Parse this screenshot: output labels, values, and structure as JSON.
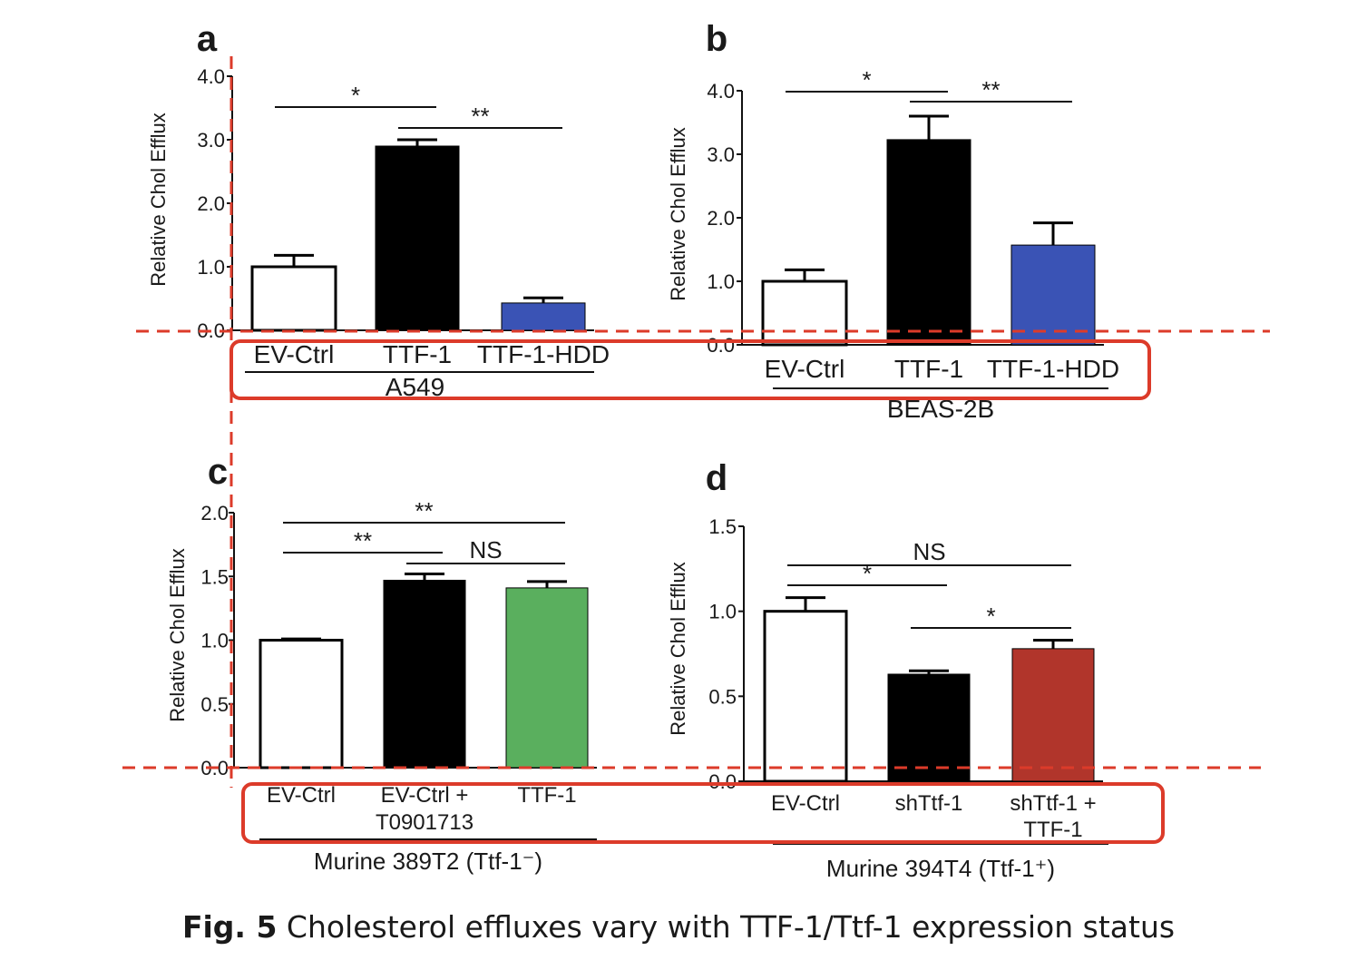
{
  "caption": {
    "label": "Fig. 5",
    "text": "Cholesterol effluxes vary with TTF-1/Ttf-1 expression status"
  },
  "colors": {
    "ev_ctrl": "#ffffff",
    "black": "#000000",
    "blue": "#3a53b5",
    "green": "#5aaf5e",
    "red_bar": "#b1352b",
    "annotation_red": "#dc3b2a"
  },
  "chart_data": [
    {
      "panel": "a",
      "type": "bar",
      "ylabel": "Relative Chol Efflux",
      "xlabel": "A549",
      "ylim": [
        0,
        4.0
      ],
      "yticks": [
        "0.0",
        "1.0",
        "2.0",
        "3.0",
        "4.0"
      ],
      "categories": [
        "EV-Ctrl",
        "TTF-1",
        "TTF-1-HDD"
      ],
      "values": [
        1.0,
        2.9,
        0.43
      ],
      "errors": [
        0.18,
        0.1,
        0.08
      ],
      "bar_colors": [
        "#ffffff",
        "#000000",
        "#3a53b5"
      ],
      "significance": [
        {
          "from": 0,
          "to": 1,
          "label": "*"
        },
        {
          "from": 1,
          "to": 2,
          "label": "**"
        }
      ]
    },
    {
      "panel": "b",
      "type": "bar",
      "ylabel": "Relative Chol Efflux",
      "xlabel": "BEAS-2B",
      "ylim": [
        0,
        4.0
      ],
      "yticks": [
        "0.0",
        "1.0",
        "2.0",
        "3.0",
        "4.0"
      ],
      "categories": [
        "EV-Ctrl",
        "TTF-1",
        "TTF-1-HDD"
      ],
      "values": [
        1.0,
        3.23,
        1.57
      ],
      "errors": [
        0.18,
        0.37,
        0.35
      ],
      "bar_colors": [
        "#ffffff",
        "#000000",
        "#3a53b5"
      ],
      "significance": [
        {
          "from": 0,
          "to": 1,
          "label": "*"
        },
        {
          "from": 1,
          "to": 2,
          "label": "**"
        }
      ]
    },
    {
      "panel": "c",
      "type": "bar",
      "ylabel": "Relative Chol Efflux",
      "xlabel": "Murine 389T2 (Ttf-1⁻)",
      "ylim": [
        0,
        2.0
      ],
      "yticks": [
        "0.0",
        "0.5",
        "1.0",
        "1.5",
        "2.0"
      ],
      "categories": [
        "EV-Ctrl",
        "EV-Ctrl +\nT0901713",
        "TTF-1"
      ],
      "values": [
        1.0,
        1.47,
        1.41
      ],
      "errors": [
        0.01,
        0.05,
        0.05
      ],
      "bar_colors": [
        "#ffffff",
        "#000000",
        "#5aaf5e"
      ],
      "significance": [
        {
          "from": 0,
          "to": 1,
          "label": "**"
        },
        {
          "from": 1,
          "to": 2,
          "label": "NS"
        },
        {
          "from": 0,
          "to": 2,
          "label": "**"
        }
      ]
    },
    {
      "panel": "d",
      "type": "bar",
      "ylabel": "Relative Chol Efflux",
      "xlabel": "Murine 394T4 (Ttf-1⁺)",
      "ylim": [
        0,
        1.5
      ],
      "yticks": [
        "0.0",
        "0.5",
        "1.0",
        "1.5"
      ],
      "categories": [
        "EV-Ctrl",
        "shTtf-1",
        "shTtf-1 +\nTTF-1"
      ],
      "values": [
        1.0,
        0.63,
        0.78
      ],
      "errors": [
        0.08,
        0.02,
        0.05
      ],
      "bar_colors": [
        "#ffffff",
        "#000000",
        "#b1352b"
      ],
      "significance": [
        {
          "from": 0,
          "to": 1,
          "label": "*"
        },
        {
          "from": 0,
          "to": 2,
          "label": "NS"
        },
        {
          "from": 1,
          "to": 2,
          "label": "*"
        }
      ]
    }
  ]
}
